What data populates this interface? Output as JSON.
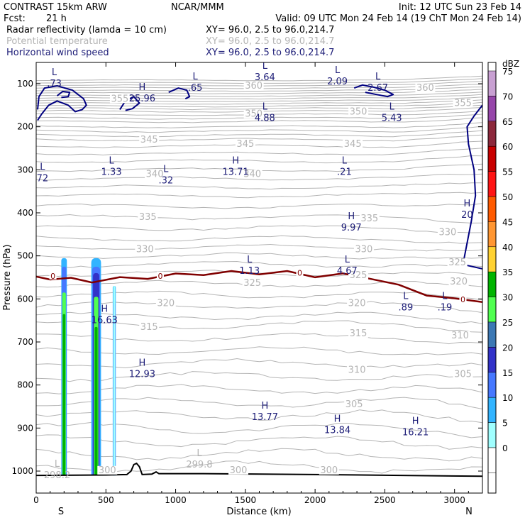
{
  "header": {
    "model": "CONTRAST 15km ARW",
    "org": "NCAR/MMM",
    "init": "Init: 12 UTC Sun 23 Feb 14",
    "fcst_label": "Fcst:",
    "fcst_value": "21 h",
    "valid": "Valid: 09 UTC Mon 24 Feb 14 (19 ChT Mon 24 Feb 14)",
    "fields": [
      {
        "name": "Radar reflectivity (lamda = 10 cm)",
        "xy": "XY=  96.0,  2.5 to  96.0,214.7",
        "color": "#000000"
      },
      {
        "name": "Potential temperature",
        "xy": "XY=  96.0,  2.5 to  96.0,214.7",
        "color": "#b4b4b4"
      },
      {
        "name": "Horizontal wind speed",
        "xy": "XY=  96.0,  2.5 to  96.0,214.7",
        "color": "#1e1e78"
      }
    ]
  },
  "chart_data": {
    "type": "cross-section",
    "xlabel": "Distance (km)",
    "ylabel": "Pressure (hPa)",
    "xlim": [
      0,
      3200
    ],
    "ylim_pressure": [
      50,
      1030
    ],
    "x_ticks": [
      0,
      500,
      1000,
      1500,
      2000,
      2500,
      3000
    ],
    "y_ticks": [
      100,
      200,
      300,
      400,
      500,
      600,
      700,
      800,
      900,
      1000
    ],
    "x_endpoints": {
      "left": "S",
      "right": "N"
    },
    "theta_contours": {
      "color": "#b4b4b4",
      "labels": [
        {
          "value": "360",
          "x": 1560,
          "p": 110
        },
        {
          "value": "360",
          "x": 2790,
          "p": 115
        },
        {
          "value": "355",
          "x": 600,
          "p": 140
        },
        {
          "value": "355",
          "x": 3060,
          "p": 150
        },
        {
          "value": "350",
          "x": 2310,
          "p": 170
        },
        {
          "value": "350",
          "x": 1560,
          "p": 175
        },
        {
          "value": "345",
          "x": 810,
          "p": 235
        },
        {
          "value": "345",
          "x": 1500,
          "p": 245
        },
        {
          "value": "345",
          "x": 2270,
          "p": 245
        },
        {
          "value": "340",
          "x": 850,
          "p": 315
        },
        {
          "value": "340",
          "x": 1550,
          "p": 315
        },
        {
          "value": "335",
          "x": 800,
          "p": 415
        },
        {
          "value": "335",
          "x": 2390,
          "p": 418
        },
        {
          "value": "330",
          "x": 780,
          "p": 490
        },
        {
          "value": "330",
          "x": 2350,
          "p": 490
        },
        {
          "value": "330",
          "x": 2950,
          "p": 450
        },
        {
          "value": "325",
          "x": 3020,
          "p": 520
        },
        {
          "value": "325",
          "x": 2310,
          "p": 550
        },
        {
          "value": "325",
          "x": 1550,
          "p": 568
        },
        {
          "value": "320",
          "x": 930,
          "p": 615
        },
        {
          "value": "320",
          "x": 2300,
          "p": 615
        },
        {
          "value": "320",
          "x": 3030,
          "p": 565
        },
        {
          "value": "315",
          "x": 810,
          "p": 670
        },
        {
          "value": "315",
          "x": 2310,
          "p": 685
        },
        {
          "value": "310",
          "x": 2300,
          "p": 770
        },
        {
          "value": "310",
          "x": 3040,
          "p": 690
        },
        {
          "value": "305",
          "x": 2280,
          "p": 850
        },
        {
          "value": "305",
          "x": 3060,
          "p": 780
        },
        {
          "value": "300",
          "x": 510,
          "p": 1003
        },
        {
          "value": "300",
          "x": 1450,
          "p": 1003
        },
        {
          "value": "300",
          "x": 2100,
          "p": 1003
        }
      ]
    },
    "freezing_level": {
      "value": 0,
      "label": "0",
      "color": "#800000",
      "points": [
        [
          0,
          548
        ],
        [
          100,
          550
        ],
        [
          250,
          555
        ],
        [
          400,
          560
        ],
        [
          600,
          552
        ],
        [
          800,
          550
        ],
        [
          1000,
          545
        ],
        [
          1200,
          540
        ],
        [
          1400,
          540
        ],
        [
          1600,
          538
        ],
        [
          1800,
          540
        ],
        [
          2000,
          545
        ],
        [
          2200,
          545
        ],
        [
          2400,
          550
        ],
        [
          2600,
          570
        ],
        [
          2800,
          590
        ],
        [
          3000,
          600
        ],
        [
          3200,
          607
        ]
      ]
    },
    "wind_speed_labels": [
      {
        "type": "L",
        "value": ".73",
        "x": 130,
        "p": 90
      },
      {
        "type": "L",
        "value": "3.64",
        "x": 1640,
        "p": 75
      },
      {
        "type": "L",
        "value": "2.09",
        "x": 2160,
        "p": 85
      },
      {
        "type": "L",
        "value": "2.67",
        "x": 2450,
        "p": 100
      },
      {
        "type": "L",
        "value": ".65",
        "x": 1140,
        "p": 100
      },
      {
        "type": "H",
        "value": "25.96",
        "x": 760,
        "p": 125
      },
      {
        "type": "L",
        "value": "4.88",
        "x": 1640,
        "p": 170
      },
      {
        "type": "L",
        "value": "5.43",
        "x": 2550,
        "p": 170
      },
      {
        "type": "L",
        "value": "1.33",
        "x": 540,
        "p": 295
      },
      {
        "type": "L",
        "value": "72",
        "x": 45,
        "p": 310
      },
      {
        "type": "L",
        "value": ".32",
        "x": 930,
        "p": 315
      },
      {
        "type": "H",
        "value": "13.71",
        "x": 1430,
        "p": 295
      },
      {
        "type": "L",
        "value": ".21",
        "x": 2210,
        "p": 295
      },
      {
        "type": "H",
        "value": "9.97",
        "x": 2260,
        "p": 425
      },
      {
        "type": "L",
        "value": "1.13",
        "x": 1530,
        "p": 525
      },
      {
        "type": "L",
        "value": "4.67",
        "x": 2230,
        "p": 525
      },
      {
        "type": "L",
        "value": ".89",
        "x": 2650,
        "p": 610
      },
      {
        "type": "L",
        "value": ".19",
        "x": 2930,
        "p": 610
      },
      {
        "type": "H",
        "value": "16.63",
        "x": 490,
        "p": 640
      },
      {
        "type": "H",
        "value": "12.93",
        "x": 760,
        "p": 765
      },
      {
        "type": "H",
        "value": "13.77",
        "x": 1640,
        "p": 865
      },
      {
        "type": "H",
        "value": "13.84",
        "x": 2160,
        "p": 895
      },
      {
        "type": "H",
        "value": "16.21",
        "x": 2720,
        "p": 900
      },
      {
        "type": "H",
        "value": "20",
        "x": 3090,
        "p": 395
      },
      {
        "type": "L",
        "value": "298.2",
        "x": 150,
        "p": 1000
      },
      {
        "type": "L",
        "value": "299.8",
        "x": 1170,
        "p": 975
      }
    ],
    "colorbar": {
      "unit": "dBZ",
      "levels": [
        75,
        70,
        65,
        60,
        55,
        50,
        45,
        40,
        35,
        30,
        25,
        20,
        15,
        10,
        5,
        0
      ],
      "colors": [
        "#c8a0d2",
        "#9646aa",
        "#8c283c",
        "#c80000",
        "#ff1414",
        "#ff5a00",
        "#ff9632",
        "#ffd232",
        "#00b400",
        "#50ff50",
        "#3c78b4",
        "#3232c8",
        "#4678ff",
        "#32b4ff",
        "#a0ffff",
        "#ffffff"
      ]
    }
  }
}
